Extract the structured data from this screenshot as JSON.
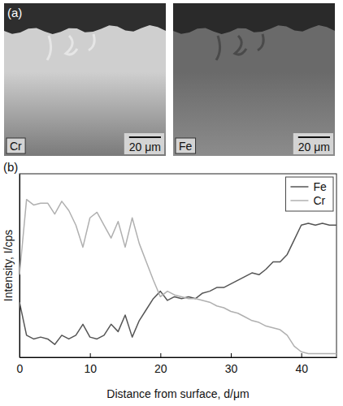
{
  "chart_data": {
    "type": "line",
    "panel_label": "(b)",
    "x_label": "Distance from surface, d/μm",
    "y_label": "Intensity, I/cps",
    "x": [
      0,
      1,
      2,
      3,
      4,
      5,
      6,
      7,
      8,
      9,
      10,
      11,
      12,
      13,
      14,
      15,
      16,
      17,
      18,
      19,
      20,
      21,
      22,
      23,
      24,
      25,
      26,
      27,
      28,
      29,
      30,
      31,
      32,
      33,
      34,
      35,
      36,
      37,
      38,
      39,
      40,
      41,
      42,
      43,
      44,
      45
    ],
    "series": [
      {
        "name": "Fe",
        "color": "#555555",
        "values": [
          30,
          12,
          10,
          11,
          10,
          7,
          12,
          10,
          12,
          18,
          11,
          10,
          12,
          18,
          14,
          23,
          11,
          20,
          26,
          32,
          36,
          31,
          33,
          32,
          33,
          32,
          35,
          36,
          38,
          38,
          40,
          42,
          44,
          46,
          45,
          48,
          52,
          52,
          56,
          64,
          72,
          73,
          72,
          73,
          72,
          72
        ]
      },
      {
        "name": "Cr",
        "color": "#b0b0b0",
        "values": [
          45,
          86,
          83,
          84,
          84,
          78,
          85,
          80,
          72,
          60,
          76,
          79,
          72,
          65,
          74,
          60,
          76,
          62,
          52,
          42,
          33,
          36,
          34,
          33,
          32,
          32,
          31,
          30,
          28,
          27,
          25,
          24,
          22,
          20,
          19,
          17,
          16,
          15,
          12,
          6,
          3,
          2,
          2,
          2,
          2,
          2
        ]
      }
    ],
    "xlim": [
      0,
      45
    ],
    "ylim": [
      0,
      100
    ],
    "xticks": [
      0,
      10,
      20,
      30,
      40
    ],
    "legend": "upper right",
    "tick_labels": "x",
    "grid": false
  },
  "image_panel": {
    "panel_label": "(a)",
    "maps": [
      {
        "label": "Cr",
        "scale_bar": "20 μm"
      },
      {
        "label": "Fe",
        "scale_bar": "20 μm"
      }
    ]
  }
}
